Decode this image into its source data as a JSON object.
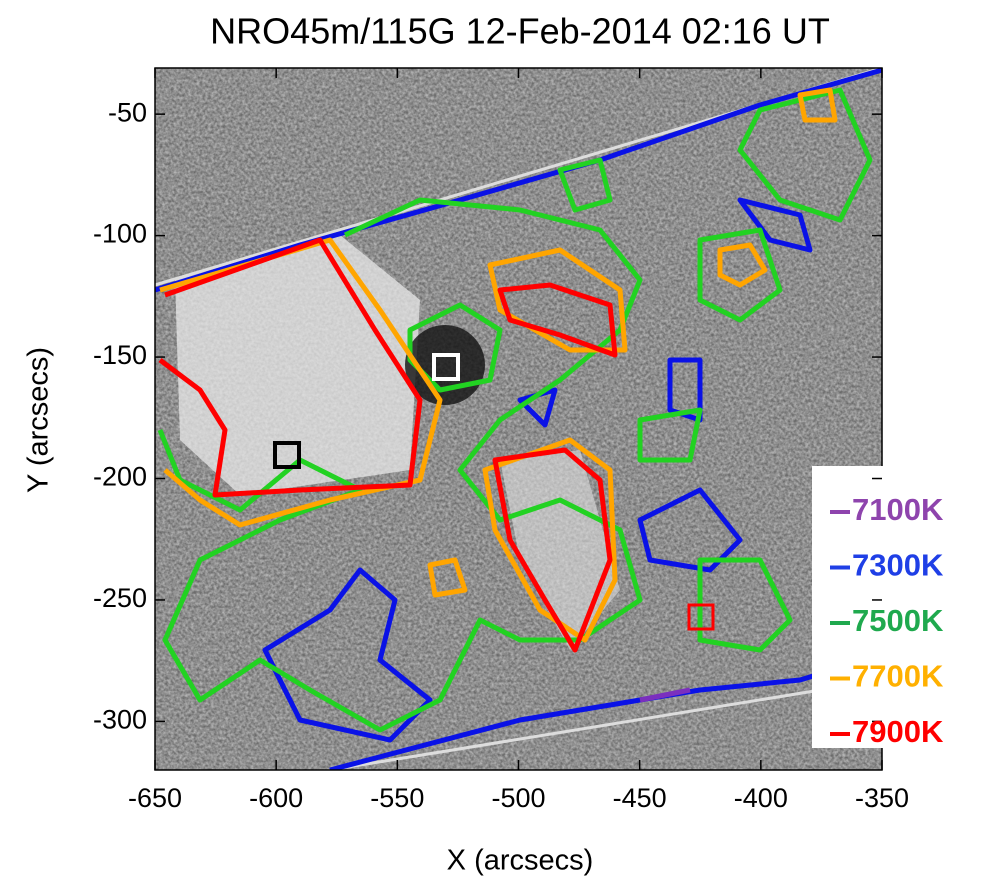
{
  "chart_data": {
    "type": "image",
    "title": "NRO45m/115G 12-Feb-2014 02:16 UT",
    "x_label": "X (arcsecs)",
    "y_label": "Y (arcsecs)",
    "xlim": [
      -650,
      -350
    ],
    "xticks": [
      -650,
      -600,
      -550,
      -500,
      -450,
      -400,
      -350
    ],
    "ylim": [
      -320,
      -31
    ],
    "yticks": [
      -50,
      -100,
      -150,
      -200,
      -250,
      -300
    ],
    "series": [
      {
        "name": "7100K",
        "color": "#8e44ad"
      },
      {
        "name": "7300K",
        "color": "#1f3fe6"
      },
      {
        "name": "7500K",
        "color": "#1fa94e"
      },
      {
        "name": "7700K",
        "color": "#ffb000"
      },
      {
        "name": "7900K",
        "color": "#ff0000"
      }
    ]
  }
}
